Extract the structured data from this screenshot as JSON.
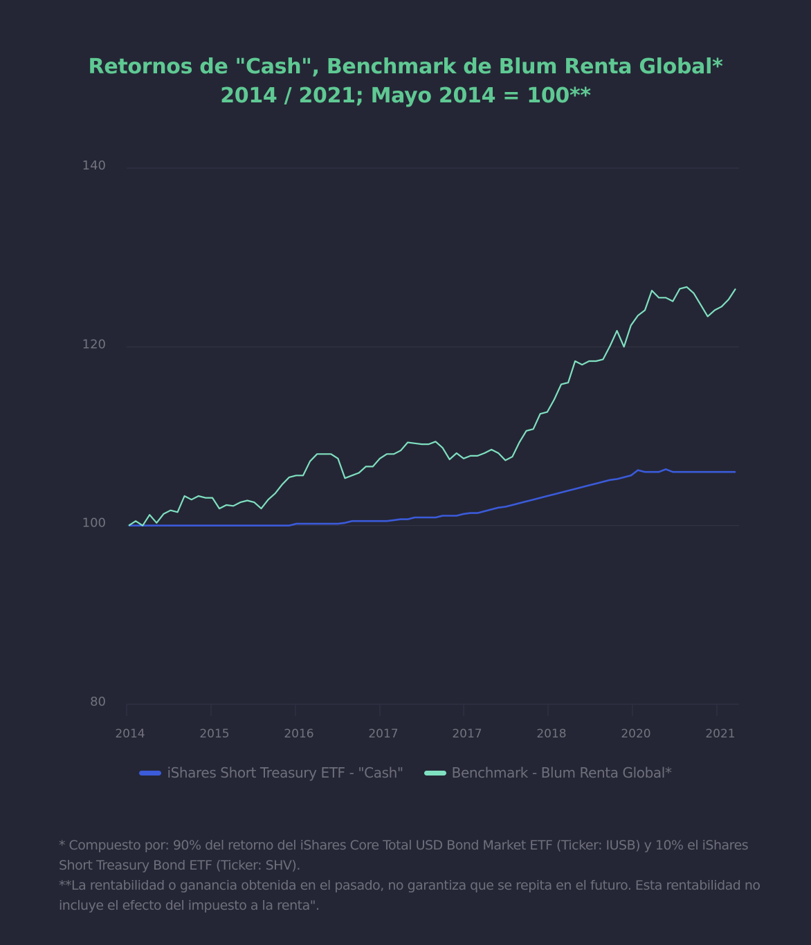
{
  "title": {
    "line1": "Retornos de \"Cash\", Benchmark de Blum Renta Global*",
    "line2": "2014 / 2021; Mayo 2014 = 100**"
  },
  "colors": {
    "background": "#242635",
    "title": "#5fc993",
    "cash": "#3b5bdb",
    "benchmark": "#7fe0c0",
    "grid": "#343446",
    "axis_text": "#73737f"
  },
  "legend": {
    "items": [
      {
        "label": "iShares Short Treasury ETF - \"Cash\"",
        "color": "#3b5bdb"
      },
      {
        "label": "Benchmark - Blum Renta Global*",
        "color": "#7fe0c0"
      }
    ]
  },
  "footnote": {
    "line1": "* Compuesto por: 90% del retorno del iShares Core Total USD Bond Market ETF (Ticker: IUSB) y 10% el iShares Short Treasury Bond ETF  (Ticker: SHV).",
    "line2": "**La rentabilidad o ganancia obtenida en el pasado, no garantiza que se repita en el futuro. Esta rentabilidad no incluye el efecto del impuesto a la renta\"."
  },
  "chart_data": {
    "type": "line",
    "title": "Retornos de \"Cash\", Benchmark de Blum Renta Global* 2014 / 2021; Mayo 2014 = 100**",
    "xlabel": "",
    "ylabel": "",
    "ylim": [
      80,
      140
    ],
    "yticks": [
      80,
      100,
      120,
      140
    ],
    "xtick_labels": [
      "2014",
      "2015",
      "2016",
      "2017",
      "2017",
      "2018",
      "2020",
      "2021"
    ],
    "grid": true,
    "legend_position": "bottom",
    "n_points": 88,
    "series": [
      {
        "name": "iShares Short Treasury ETF - \"Cash\"",
        "color": "#3b5bdb",
        "values": [
          100.0,
          100.0,
          100.0,
          100.0,
          100.0,
          100.0,
          100.0,
          100.0,
          100.0,
          100.0,
          100.0,
          100.0,
          100.0,
          100.0,
          100.0,
          100.0,
          100.0,
          100.0,
          100.0,
          100.0,
          100.0,
          100.0,
          100.0,
          100.0,
          100.2,
          100.2,
          100.2,
          100.2,
          100.2,
          100.2,
          100.2,
          100.3,
          100.5,
          100.5,
          100.5,
          100.5,
          100.5,
          100.5,
          100.6,
          100.7,
          100.7,
          100.9,
          100.9,
          100.9,
          100.9,
          101.1,
          101.1,
          101.1,
          101.3,
          101.4,
          101.4,
          101.6,
          101.8,
          102.0,
          102.1,
          102.3,
          102.5,
          102.7,
          102.9,
          103.1,
          103.3,
          103.5,
          103.7,
          103.9,
          104.1,
          104.3,
          104.5,
          104.7,
          104.9,
          105.1,
          105.2,
          105.4,
          105.6,
          106.2,
          106.0,
          106.0,
          106.0,
          106.3,
          106.0,
          106.0,
          106.0,
          106.0,
          106.0,
          106.0,
          106.0,
          106.0,
          106.0,
          106.0
        ]
      },
      {
        "name": "Benchmark - Blum Renta Global*",
        "color": "#7fe0c0",
        "values": [
          100.0,
          100.5,
          100.0,
          101.2,
          100.3,
          101.3,
          101.7,
          101.5,
          103.3,
          102.9,
          103.3,
          103.1,
          103.1,
          101.9,
          102.3,
          102.2,
          102.6,
          102.8,
          102.6,
          101.9,
          102.9,
          103.6,
          104.6,
          105.4,
          105.6,
          105.6,
          107.2,
          108.0,
          108.0,
          108.0,
          107.5,
          105.3,
          105.6,
          105.9,
          106.6,
          106.6,
          107.5,
          108.0,
          108.0,
          108.4,
          109.3,
          109.2,
          109.1,
          109.1,
          109.4,
          108.7,
          107.4,
          108.1,
          107.5,
          107.8,
          107.8,
          108.1,
          108.5,
          108.1,
          107.3,
          107.7,
          109.3,
          110.6,
          110.8,
          112.5,
          112.7,
          114.1,
          115.8,
          116.0,
          118.4,
          118.0,
          118.4,
          118.4,
          118.6,
          120.1,
          121.8,
          120.0,
          122.4,
          123.5,
          124.1,
          126.3,
          125.5,
          125.5,
          125.1,
          126.5,
          126.7,
          126.0,
          124.7,
          123.4,
          124.1,
          124.5,
          125.3,
          126.5
        ]
      }
    ]
  }
}
